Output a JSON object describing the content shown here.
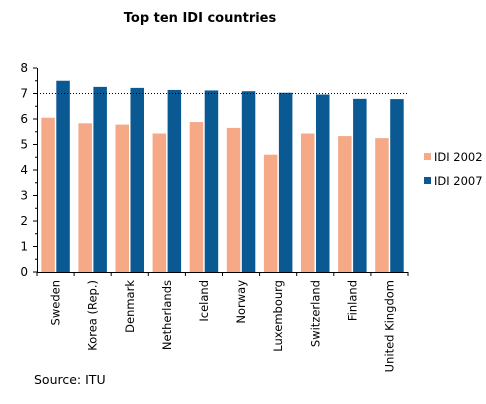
{
  "chart_data": {
    "type": "bar",
    "title": "Top ten IDI countries",
    "categories": [
      "Sweden",
      "Korea (Rep.)",
      "Denmark",
      "Netherlands",
      "Iceland",
      "Norway",
      "Luxembourg",
      "Switzerland",
      "Finland",
      "United Kingdom"
    ],
    "series": [
      {
        "name": "IDI 2002",
        "color": "#f5a987",
        "values": [
          6.05,
          5.83,
          5.78,
          5.43,
          5.88,
          5.65,
          4.6,
          5.43,
          5.33,
          5.25
        ]
      },
      {
        "name": "IDI 2007",
        "color": "#0a5993",
        "values": [
          7.5,
          7.26,
          7.22,
          7.14,
          7.12,
          7.09,
          7.03,
          6.96,
          6.79,
          6.78
        ]
      }
    ],
    "ylim": [
      0,
      8
    ],
    "yticks": [
      "0",
      "1",
      "2",
      "3",
      "4",
      "5",
      "6",
      "7",
      "8"
    ],
    "reference_line": 7,
    "legend_position": "right",
    "grid": false
  },
  "source_label": "Source: ITU"
}
